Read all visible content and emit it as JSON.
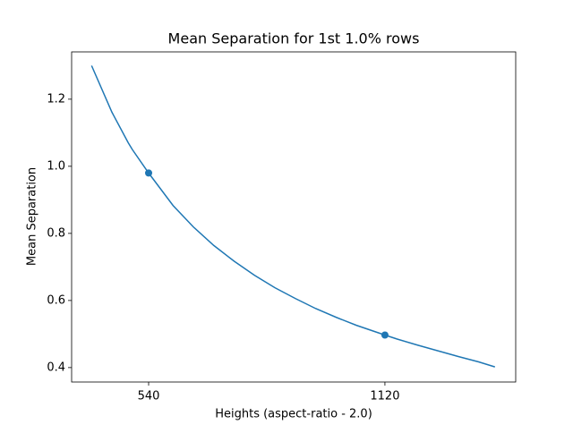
{
  "chart_data": {
    "type": "line",
    "title": "Mean Separation for 1st 1.0% rows",
    "xlabel": "Heights (aspect-ratio - 2.0)",
    "ylabel": "Mean Separation",
    "x": [
      400,
      450,
      490,
      500,
      540,
      600,
      650,
      700,
      750,
      800,
      850,
      900,
      950,
      1000,
      1050,
      1120,
      1150,
      1200,
      1250,
      1300,
      1350,
      1390
    ],
    "series": [
      {
        "color": "#1f77b4",
        "values": [
          1.3,
          1.161,
          1.07,
          1.05,
          0.98,
          0.883,
          0.819,
          0.764,
          0.717,
          0.675,
          0.638,
          0.606,
          0.576,
          0.55,
          0.526,
          0.497,
          0.485,
          0.467,
          0.45,
          0.433,
          0.417,
          0.402
        ]
      }
    ],
    "points": {
      "color": "#1f77b4",
      "x": [
        540,
        1120
      ],
      "values": [
        0.98,
        0.497
      ]
    },
    "xlim": [
      351,
      1441
    ],
    "ylim": [
      0.357,
      1.341
    ],
    "xticks": [
      540,
      1120
    ],
    "yticks": [
      0.4,
      0.6,
      0.8,
      {
        "value": 1.0,
        "label": "1.0"
      },
      1.2
    ]
  }
}
